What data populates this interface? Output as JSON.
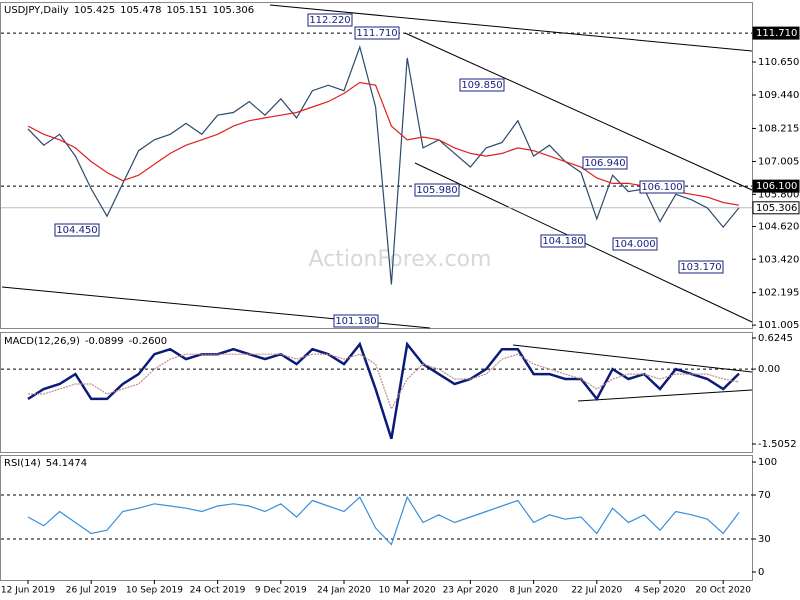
{
  "chart_data": [
    {
      "type": "line",
      "title": "USDJPY,Daily",
      "readout": [
        105.425,
        105.478,
        105.151,
        105.306
      ],
      "watermark": "ActionForex.com",
      "categories": [
        "12 Jun 2019",
        null,
        null,
        null,
        "26 Jul 2019",
        null,
        null,
        null,
        "10 Sep 2019",
        null,
        null,
        null,
        "24 Oct 2019",
        null,
        null,
        null,
        "9 Dec 2019",
        null,
        null,
        null,
        "24 Jan 2020",
        null,
        null,
        null,
        "10 Mar 2020",
        null,
        null,
        null,
        "23 Apr 2020",
        null,
        null,
        null,
        "8 Jun 2020",
        null,
        null,
        null,
        "22 Jul 2020",
        null,
        null,
        null,
        "4 Sep 2020",
        null,
        null,
        null,
        "20 Oct 2020",
        null
      ],
      "series": [
        {
          "name": "USDJPY",
          "color": "#2b4a6b",
          "values": [
            108.2,
            107.6,
            108.0,
            107.2,
            106.0,
            105.0,
            106.2,
            107.4,
            107.8,
            108.0,
            108.4,
            108.0,
            108.7,
            108.8,
            109.2,
            108.7,
            109.3,
            108.6,
            109.6,
            109.8,
            109.6,
            111.2,
            109.0,
            102.5,
            110.8,
            107.5,
            107.8,
            107.3,
            106.8,
            107.5,
            107.7,
            108.5,
            107.2,
            107.6,
            107.0,
            106.6,
            104.9,
            106.5,
            105.9,
            106.0,
            104.8,
            105.8,
            105.6,
            105.3,
            104.6,
            105.306
          ]
        },
        {
          "name": "MA",
          "color": "#e02020",
          "values": [
            108.3,
            108.0,
            107.8,
            107.5,
            107.0,
            106.6,
            106.3,
            106.5,
            106.9,
            107.3,
            107.6,
            107.8,
            108.0,
            108.3,
            108.5,
            108.6,
            108.7,
            108.8,
            109.0,
            109.2,
            109.5,
            109.9,
            109.8,
            108.3,
            107.8,
            107.9,
            107.8,
            107.5,
            107.3,
            107.2,
            107.3,
            107.5,
            107.4,
            107.2,
            107.0,
            106.8,
            106.4,
            106.2,
            106.2,
            106.1,
            106.0,
            105.9,
            105.8,
            105.7,
            105.5,
            105.4
          ]
        }
      ],
      "ylim": [
        100.9,
        112.85
      ],
      "yticks": [
        {
          "value": 101.005,
          "label": "101.005"
        },
        102.195,
        {
          "value": 103.42,
          "label": "103.420"
        },
        {
          "value": 104.62,
          "label": "104.620"
        },
        {
          "value": 105.8,
          "label": "105.800"
        },
        107.005,
        108.215,
        {
          "value": 109.44,
          "label": "109.440"
        },
        {
          "value": 110.65,
          "label": "110.650"
        }
      ],
      "levels": [
        {
          "value": 111.71,
          "label": "111.710"
        },
        {
          "value": 106.1,
          "label": "106.100"
        },
        {
          "value": 105.306,
          "label": "105.306"
        }
      ],
      "annotations": [
        {
          "value": 112.22,
          "label": "112.220"
        },
        {
          "value": 111.71,
          "label": "111.710"
        },
        {
          "value": 109.85,
          "label": "109.850"
        },
        {
          "value": 105.98,
          "label": "105.980"
        },
        {
          "value": 106.94,
          "label": "106.940"
        },
        {
          "value": 106.1,
          "label": "106.100"
        },
        {
          "value": 104.45,
          "label": "104.450"
        },
        {
          "value": 104.18,
          "label": "104.180"
        },
        {
          "value": 104.0,
          "label": "104.000"
        },
        {
          "value": 103.17,
          "label": "103.170"
        },
        {
          "value": 101.18,
          "label": "101.180"
        }
      ]
    },
    {
      "type": "line",
      "title": "MACD(12,26,9)",
      "readout": [
        -0.0899,
        {
          "value": -0.26,
          "label": "-0.2600"
        }
      ],
      "categories": [
        "12 Jun 2019",
        null,
        null,
        null,
        "26 Jul 2019",
        null,
        null,
        null,
        "10 Sep 2019",
        null,
        null,
        null,
        "24 Oct 2019",
        null,
        null,
        null,
        "9 Dec 2019",
        null,
        null,
        null,
        "24 Jan 2020",
        null,
        null,
        null,
        "10 Mar 2020",
        null,
        null,
        null,
        "23 Apr 2020",
        null,
        null,
        null,
        "8 Jun 2020",
        null,
        null,
        null,
        "22 Jul 2020",
        null,
        null,
        null,
        "4 Sep 2020",
        null,
        null,
        null,
        "20 Oct 2020",
        null
      ],
      "series": [
        {
          "name": "MACD",
          "color": "#0b1b7a",
          "values": [
            -0.6,
            -0.4,
            -0.3,
            -0.1,
            -0.6,
            -0.6,
            -0.3,
            -0.1,
            0.3,
            0.4,
            0.2,
            0.3,
            0.3,
            0.4,
            0.3,
            0.2,
            0.3,
            0.1,
            0.4,
            0.3,
            0.1,
            0.5,
            -0.4,
            -1.4,
            0.5,
            0.1,
            -0.1,
            -0.3,
            -0.2,
            0.0,
            0.4,
            0.4,
            -0.1,
            -0.1,
            -0.2,
            -0.2,
            -0.6,
            0.0,
            -0.2,
            -0.1,
            -0.4,
            0.0,
            -0.1,
            -0.2,
            -0.4,
            -0.0899
          ]
        },
        {
          "name": "Signal",
          "color": "#c08a8a",
          "values": [
            -0.5,
            -0.5,
            -0.4,
            -0.3,
            -0.3,
            -0.5,
            -0.4,
            -0.3,
            0.0,
            0.2,
            0.3,
            0.3,
            0.3,
            0.3,
            0.3,
            0.3,
            0.3,
            0.2,
            0.3,
            0.3,
            0.2,
            0.3,
            0.1,
            -0.8,
            -0.2,
            0.1,
            0.0,
            -0.2,
            -0.2,
            -0.1,
            0.2,
            0.3,
            0.1,
            0.0,
            -0.1,
            -0.2,
            -0.4,
            -0.2,
            -0.1,
            -0.1,
            -0.2,
            -0.1,
            -0.1,
            -0.1,
            -0.2,
            -0.26
          ]
        }
      ],
      "ylim": [
        -1.666,
        0.725
      ],
      "yticks": [
        -1.5052,
        {
          "value": 0,
          "label": "0.00"
        },
        0.6245
      ],
      "levels": [
        0
      ]
    },
    {
      "type": "line",
      "title": "RSI(14)",
      "readout": [
        54.1474
      ],
      "categories": [
        "12 Jun 2019",
        null,
        null,
        null,
        "26 Jul 2019",
        null,
        null,
        null,
        "10 Sep 2019",
        null,
        null,
        null,
        "24 Oct 2019",
        null,
        null,
        null,
        "9 Dec 2019",
        null,
        null,
        null,
        "24 Jan 2020",
        null,
        null,
        null,
        "10 Mar 2020",
        null,
        null,
        null,
        "23 Apr 2020",
        null,
        null,
        null,
        "8 Jun 2020",
        null,
        null,
        null,
        "22 Jul 2020",
        null,
        null,
        null,
        "4 Sep 2020",
        null,
        null,
        null,
        "20 Oct 2020",
        null
      ],
      "series": [
        {
          "name": "RSI",
          "color": "#3a8fd8",
          "values": [
            50,
            42,
            55,
            45,
            35,
            38,
            55,
            58,
            62,
            60,
            58,
            55,
            60,
            62,
            60,
            55,
            62,
            50,
            65,
            60,
            55,
            68,
            40,
            25,
            68,
            45,
            52,
            45,
            50,
            55,
            60,
            65,
            45,
            52,
            48,
            50,
            35,
            58,
            45,
            52,
            38,
            55,
            52,
            48,
            35,
            54.1474
          ]
        }
      ],
      "ylim": [
        -7.3,
        106.4
      ],
      "yticks": [
        0,
        30,
        70,
        100
      ],
      "levels": [
        70,
        30
      ]
    }
  ]
}
